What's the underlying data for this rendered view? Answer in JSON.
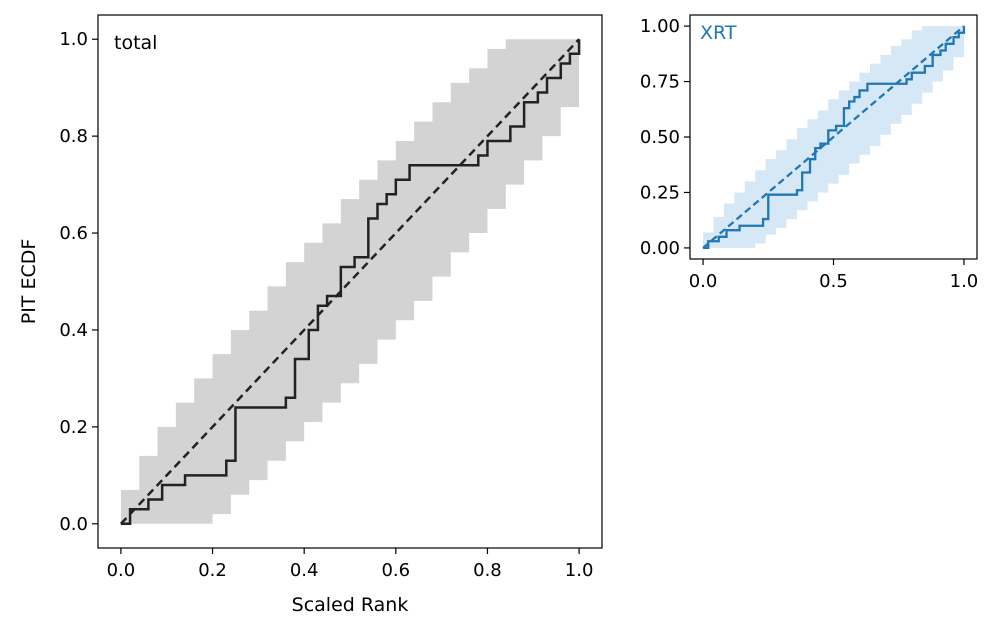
{
  "chart_data": [
    {
      "type": "line",
      "panel_label": "total",
      "xlabel": "Scaled Rank",
      "ylabel": "PIT ECDF",
      "xlim": [
        -0.05,
        1.05
      ],
      "ylim": [
        -0.05,
        1.05
      ],
      "xticks": [
        0.0,
        0.2,
        0.4,
        0.6,
        0.8,
        1.0
      ],
      "yticks": [
        0.0,
        0.2,
        0.4,
        0.6,
        0.8,
        1.0
      ],
      "xtick_labels": [
        "0.0",
        "0.2",
        "0.4",
        "0.6",
        "0.8",
        "1.0"
      ],
      "ytick_labels": [
        "0.0",
        "0.2",
        "0.4",
        "0.6",
        "0.8",
        "1.0"
      ],
      "grid": false,
      "colors": {
        "line": "#222222",
        "band": "#d3d3d3",
        "label": "#000000"
      },
      "band": {
        "x": [
          0.0,
          0.04,
          0.08,
          0.12,
          0.16,
          0.2,
          0.24,
          0.28,
          0.32,
          0.36,
          0.4,
          0.44,
          0.48,
          0.52,
          0.56,
          0.6,
          0.64,
          0.68,
          0.72,
          0.76,
          0.8,
          0.84,
          0.88,
          0.92,
          0.96,
          1.0
        ],
        "lower": [
          0.0,
          0.0,
          0.0,
          0.0,
          0.0,
          0.02,
          0.06,
          0.09,
          0.13,
          0.17,
          0.21,
          0.25,
          0.29,
          0.33,
          0.38,
          0.42,
          0.46,
          0.51,
          0.56,
          0.6,
          0.65,
          0.7,
          0.75,
          0.8,
          0.86,
          0.93
        ],
        "upper": [
          0.07,
          0.14,
          0.2,
          0.25,
          0.3,
          0.35,
          0.4,
          0.44,
          0.49,
          0.54,
          0.58,
          0.62,
          0.67,
          0.71,
          0.75,
          0.79,
          0.83,
          0.87,
          0.91,
          0.94,
          0.98,
          1.0,
          1.0,
          1.0,
          1.0,
          1.0
        ]
      },
      "ecdf": {
        "x": [
          0.0,
          0.02,
          0.06,
          0.09,
          0.14,
          0.23,
          0.25,
          0.36,
          0.38,
          0.41,
          0.43,
          0.45,
          0.48,
          0.51,
          0.54,
          0.56,
          0.58,
          0.6,
          0.63,
          0.78,
          0.8,
          0.85,
          0.88,
          0.91,
          0.93,
          0.96,
          0.98,
          1.0
        ],
        "y": [
          0.0,
          0.03,
          0.05,
          0.08,
          0.1,
          0.13,
          0.24,
          0.26,
          0.34,
          0.4,
          0.45,
          0.47,
          0.53,
          0.55,
          0.63,
          0.66,
          0.68,
          0.71,
          0.74,
          0.76,
          0.79,
          0.82,
          0.87,
          0.89,
          0.92,
          0.95,
          0.97,
          1.0
        ]
      }
    },
    {
      "type": "line",
      "panel_label": "XRT",
      "xlim": [
        -0.05,
        1.05
      ],
      "ylim": [
        -0.05,
        1.05
      ],
      "xticks": [
        0.0,
        0.5,
        1.0
      ],
      "yticks": [
        0.0,
        0.25,
        0.5,
        0.75,
        1.0
      ],
      "xtick_labels": [
        "0.0",
        "0.5",
        "1.0"
      ],
      "ytick_labels": [
        "0.00",
        "0.25",
        "0.50",
        "0.75",
        "1.00"
      ],
      "grid": false,
      "colors": {
        "line": "#1f77b4",
        "band": "#d6e8f5",
        "label": "#1f77b4"
      },
      "band": {
        "x": [
          0.0,
          0.04,
          0.08,
          0.12,
          0.16,
          0.2,
          0.24,
          0.28,
          0.32,
          0.36,
          0.4,
          0.44,
          0.48,
          0.52,
          0.56,
          0.6,
          0.64,
          0.68,
          0.72,
          0.76,
          0.8,
          0.84,
          0.88,
          0.92,
          0.96,
          1.0
        ],
        "lower": [
          0.0,
          0.0,
          0.0,
          0.0,
          0.0,
          0.02,
          0.06,
          0.09,
          0.13,
          0.17,
          0.21,
          0.25,
          0.29,
          0.33,
          0.38,
          0.42,
          0.46,
          0.51,
          0.56,
          0.6,
          0.65,
          0.7,
          0.75,
          0.8,
          0.86,
          0.93
        ],
        "upper": [
          0.07,
          0.14,
          0.2,
          0.25,
          0.3,
          0.35,
          0.4,
          0.44,
          0.49,
          0.54,
          0.58,
          0.62,
          0.67,
          0.71,
          0.75,
          0.79,
          0.83,
          0.87,
          0.91,
          0.94,
          0.98,
          1.0,
          1.0,
          1.0,
          1.0,
          1.0
        ]
      },
      "ecdf": {
        "x": [
          0.0,
          0.02,
          0.06,
          0.09,
          0.14,
          0.23,
          0.25,
          0.36,
          0.38,
          0.41,
          0.43,
          0.45,
          0.48,
          0.51,
          0.54,
          0.56,
          0.58,
          0.6,
          0.63,
          0.78,
          0.8,
          0.85,
          0.88,
          0.91,
          0.93,
          0.96,
          0.98,
          1.0
        ],
        "y": [
          0.0,
          0.03,
          0.05,
          0.08,
          0.1,
          0.13,
          0.24,
          0.26,
          0.34,
          0.4,
          0.45,
          0.47,
          0.53,
          0.55,
          0.63,
          0.66,
          0.68,
          0.71,
          0.74,
          0.76,
          0.79,
          0.82,
          0.87,
          0.89,
          0.92,
          0.95,
          0.97,
          1.0
        ]
      }
    }
  ]
}
